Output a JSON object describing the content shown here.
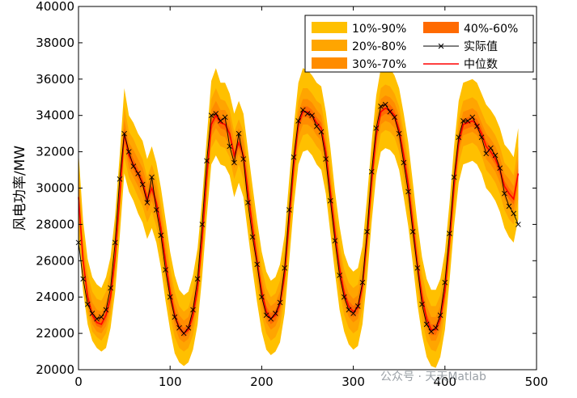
{
  "colors": {
    "band_10_90": "#FFC000",
    "band_20_80": "#FFA500",
    "band_30_70": "#FF8C00",
    "band_40_60": "#FF6A00",
    "actual": "#000000",
    "median": "#FF0000"
  },
  "watermark": "公众号 · 天天Matlab",
  "chart_data": {
    "type": "line",
    "title": "",
    "xlabel": "",
    "ylabel": "风电功率/MW",
    "xlim": [
      0,
      500
    ],
    "ylim": [
      20000,
      40000
    ],
    "x_ticks": [
      "0",
      "100",
      "200",
      "300",
      "400",
      "500"
    ],
    "y_ticks": [
      "20000",
      "22000",
      "24000",
      "26000",
      "28000",
      "30000",
      "32000",
      "34000",
      "36000",
      "38000",
      "40000"
    ],
    "grid": false,
    "legend_position": "top-right",
    "legend": [
      "10%-90%",
      "20%-80%",
      "30%-70%",
      "40%-60%",
      "实际值",
      "中位数"
    ],
    "x": [
      0,
      5,
      10,
      15,
      20,
      25,
      30,
      35,
      40,
      45,
      50,
      55,
      60,
      65,
      70,
      75,
      80,
      85,
      90,
      95,
      100,
      105,
      110,
      115,
      120,
      125,
      130,
      135,
      140,
      145,
      150,
      155,
      160,
      165,
      170,
      175,
      180,
      185,
      190,
      195,
      200,
      205,
      210,
      215,
      220,
      225,
      230,
      235,
      240,
      245,
      250,
      255,
      260,
      265,
      270,
      275,
      280,
      285,
      290,
      295,
      300,
      305,
      310,
      315,
      320,
      325,
      330,
      335,
      340,
      345,
      350,
      355,
      360,
      365,
      370,
      375,
      380,
      385,
      390,
      395,
      400,
      405,
      410,
      415,
      420,
      425,
      430,
      435,
      440,
      445,
      450,
      455,
      460,
      465,
      470,
      475,
      480
    ],
    "series": [
      {
        "name": "实际值",
        "values": [
          27000,
          25000,
          23600,
          23100,
          22800,
          22900,
          23300,
          24500,
          27000,
          30500,
          33000,
          32000,
          31200,
          30800,
          30200,
          29200,
          30600,
          28800,
          27400,
          25500,
          24000,
          22900,
          22300,
          22000,
          22300,
          23300,
          25000,
          28000,
          31500,
          34000,
          34100,
          33700,
          33900,
          32300,
          31400,
          33000,
          31600,
          29200,
          27300,
          25800,
          24000,
          23000,
          22800,
          23100,
          23700,
          25600,
          28800,
          31700,
          33700,
          34300,
          34100,
          34000,
          33400,
          33100,
          31600,
          29300,
          27100,
          25200,
          24000,
          23300,
          23100,
          23500,
          24800,
          27600,
          30900,
          33300,
          34500,
          34600,
          34200,
          33900,
          33000,
          31400,
          29800,
          27600,
          25600,
          23600,
          22500,
          22100,
          22300,
          23000,
          24800,
          27500,
          30600,
          32800,
          33700,
          33700,
          33900,
          33400,
          32800,
          31900,
          32200,
          31800,
          31100,
          29700,
          29000,
          28600,
          28000
        ]
      },
      {
        "name": "中位数",
        "values": [
          29500,
          26000,
          24000,
          23000,
          22600,
          22500,
          23000,
          24000,
          26200,
          29500,
          33000,
          31800,
          31300,
          30800,
          30300,
          29400,
          30000,
          29200,
          27800,
          26000,
          24300,
          23000,
          22300,
          22000,
          22200,
          23000,
          24500,
          27200,
          30600,
          33500,
          34000,
          33600,
          33500,
          33000,
          31800,
          32500,
          31800,
          29800,
          27800,
          26000,
          24300,
          23200,
          22800,
          23000,
          23600,
          25200,
          28200,
          31200,
          33500,
          34200,
          34200,
          34000,
          33600,
          33300,
          32000,
          29800,
          27500,
          25600,
          24200,
          23500,
          23200,
          23400,
          24600,
          27200,
          30300,
          32900,
          34200,
          34400,
          34300,
          34000,
          33200,
          31800,
          30200,
          28000,
          25800,
          24000,
          22800,
          22200,
          22200,
          22800,
          24300,
          27000,
          30100,
          32500,
          33500,
          33600,
          33700,
          33500,
          33000,
          32300,
          32000,
          31600,
          31000,
          30100,
          29700,
          29400,
          30800
        ]
      },
      {
        "name": "10%-90%",
        "values_low": [
          27200,
          24300,
          22500,
          21600,
          21200,
          21000,
          21200,
          22300,
          24300,
          27300,
          30800,
          29800,
          29300,
          28600,
          28100,
          27200,
          27800,
          27000,
          25600,
          23800,
          22200,
          20900,
          20400,
          20200,
          20400,
          21100,
          22500,
          25100,
          28400,
          31300,
          31800,
          31300,
          31200,
          30700,
          29500,
          30300,
          29500,
          27500,
          25500,
          23700,
          22100,
          21100,
          20800,
          21000,
          21500,
          23100,
          26000,
          29000,
          31300,
          32000,
          32100,
          31800,
          31300,
          31000,
          29700,
          27500,
          25300,
          23300,
          22100,
          21400,
          21100,
          21300,
          22500,
          25000,
          28100,
          30700,
          32000,
          32200,
          32100,
          31800,
          31000,
          29500,
          27900,
          25800,
          23600,
          21900,
          20700,
          20200,
          20100,
          20700,
          22200,
          24900,
          27900,
          30300,
          31300,
          31400,
          31500,
          31300,
          30800,
          30000,
          29700,
          29300,
          28700,
          27800,
          27300,
          27000,
          28300
        ],
        "values_high": [
          32000,
          28200,
          26100,
          25100,
          24700,
          24500,
          25100,
          26200,
          28500,
          31800,
          35500,
          34000,
          33600,
          33000,
          32600,
          31600,
          32300,
          31400,
          30000,
          28300,
          26500,
          25200,
          24400,
          24100,
          24300,
          25200,
          26700,
          29400,
          32800,
          35900,
          36600,
          35800,
          35800,
          35200,
          34100,
          34800,
          34100,
          32100,
          30100,
          28200,
          26500,
          25400,
          24900,
          25100,
          25800,
          27400,
          30500,
          33400,
          35800,
          36600,
          36500,
          36200,
          35800,
          35600,
          34200,
          32200,
          29800,
          27900,
          26400,
          25700,
          25400,
          25600,
          26800,
          29500,
          32500,
          35100,
          36600,
          36800,
          36600,
          36200,
          35500,
          34100,
          32500,
          30300,
          28100,
          26200,
          25000,
          24400,
          24400,
          25000,
          26500,
          29200,
          32300,
          34800,
          35800,
          35900,
          36000,
          35800,
          35200,
          34600,
          34300,
          33900,
          33300,
          32400,
          32100,
          31700,
          33300
        ]
      },
      {
        "name": "20%-80%",
        "values_low": [
          28000,
          25000,
          23100,
          22100,
          21800,
          21600,
          22000,
          23000,
          25100,
          28200,
          31700,
          30600,
          30100,
          29500,
          29000,
          28100,
          28700,
          27900,
          26500,
          24700,
          23000,
          21800,
          21200,
          21000,
          21200,
          21900,
          23400,
          26000,
          29300,
          32200,
          32700,
          32300,
          32200,
          31700,
          30500,
          31300,
          30500,
          28500,
          26500,
          24700,
          23000,
          22000,
          21600,
          21800,
          22400,
          24000,
          27000,
          30000,
          32200,
          32900,
          33000,
          32700,
          32300,
          32000,
          30700,
          28500,
          26300,
          24300,
          23000,
          22300,
          22000,
          22200,
          23400,
          26000,
          29100,
          31700,
          33000,
          33200,
          33100,
          32800,
          32000,
          30500,
          28900,
          26800,
          24600,
          22800,
          21600,
          21100,
          21000,
          21600,
          23100,
          25800,
          28900,
          31300,
          32300,
          32400,
          32500,
          32300,
          31800,
          31000,
          30700,
          30300,
          29700,
          28800,
          28300,
          28000,
          29400
        ],
        "values_high": [
          31100,
          27300,
          25300,
          24300,
          23900,
          23800,
          24300,
          25400,
          27600,
          30900,
          34500,
          33100,
          32700,
          32100,
          31600,
          30600,
          31300,
          30500,
          29100,
          27400,
          25600,
          24300,
          23500,
          23200,
          23400,
          24300,
          25800,
          28500,
          31900,
          34900,
          35500,
          34900,
          34800,
          34300,
          33100,
          33800,
          33100,
          31100,
          29100,
          27300,
          25600,
          24500,
          24000,
          24200,
          24900,
          26500,
          29500,
          32400,
          34800,
          35500,
          35500,
          35200,
          34800,
          34600,
          33200,
          31200,
          28800,
          26900,
          25500,
          24800,
          24500,
          24700,
          25900,
          28500,
          31500,
          34100,
          35500,
          35700,
          35600,
          35200,
          34500,
          33100,
          31500,
          29300,
          27100,
          25300,
          24100,
          23500,
          23500,
          24100,
          25600,
          28300,
          31300,
          33800,
          34800,
          34900,
          35000,
          34800,
          34200,
          33600,
          33300,
          32900,
          32300,
          31400,
          31100,
          30700,
          32300
        ]
      },
      {
        "name": "30%-70%",
        "values_low": [
          28700,
          25400,
          23500,
          22500,
          22100,
          22000,
          22400,
          23400,
          25600,
          28800,
          32300,
          31100,
          30600,
          30100,
          29600,
          28700,
          29300,
          28500,
          27100,
          25300,
          23600,
          22400,
          21700,
          21500,
          21700,
          22400,
          23900,
          26600,
          29900,
          32800,
          33300,
          32900,
          32800,
          32300,
          31100,
          31900,
          31100,
          29100,
          27100,
          25300,
          23600,
          22600,
          22200,
          22400,
          23000,
          24600,
          27600,
          30600,
          32800,
          33500,
          33500,
          33300,
          32900,
          32600,
          31300,
          29100,
          26900,
          24900,
          23600,
          22900,
          22600,
          22800,
          24000,
          26600,
          29700,
          32300,
          33500,
          33700,
          33600,
          33300,
          32500,
          31100,
          29500,
          27300,
          25100,
          23400,
          22200,
          21600,
          21600,
          22200,
          23700,
          26400,
          29500,
          31900,
          32900,
          33000,
          33100,
          32900,
          32400,
          31600,
          31300,
          30900,
          30300,
          29400,
          29000,
          28700,
          30100
        ],
        "values_high": [
          30400,
          26700,
          24800,
          23700,
          23300,
          23200,
          23700,
          24700,
          26900,
          30300,
          33800,
          32500,
          32100,
          31600,
          31100,
          30200,
          30800,
          30000,
          28600,
          26800,
          25100,
          23700,
          23000,
          22700,
          22900,
          23700,
          25200,
          27900,
          31300,
          34300,
          34800,
          34300,
          34300,
          33800,
          32600,
          33300,
          32600,
          30600,
          28600,
          26800,
          25100,
          23900,
          23500,
          23700,
          24300,
          25900,
          28900,
          31900,
          34200,
          34900,
          34900,
          34700,
          34300,
          34000,
          32700,
          30600,
          28300,
          26400,
          24900,
          24200,
          23900,
          24100,
          25300,
          27900,
          31000,
          33600,
          34900,
          35100,
          35000,
          34700,
          34000,
          32600,
          31000,
          28800,
          26600,
          24700,
          23500,
          22900,
          22900,
          23500,
          25000,
          27700,
          30800,
          33200,
          34200,
          34300,
          34400,
          34200,
          33600,
          33000,
          32700,
          32300,
          31700,
          30800,
          30500,
          30100,
          31600
        ]
      },
      {
        "name": "40%-60%",
        "values_low": [
          29200,
          25700,
          23800,
          22800,
          22400,
          22300,
          22700,
          23700,
          26000,
          29200,
          32700,
          31500,
          31000,
          30500,
          30000,
          29100,
          29700,
          28900,
          27500,
          25700,
          24000,
          22700,
          22100,
          21800,
          22000,
          22700,
          24200,
          26900,
          30300,
          33200,
          33700,
          33300,
          33200,
          32700,
          31500,
          32200,
          31500,
          29500,
          27500,
          25700,
          24000,
          22900,
          22500,
          22700,
          23300,
          24900,
          27900,
          30900,
          33200,
          33900,
          33900,
          33700,
          33300,
          33000,
          31700,
          29500,
          27200,
          25300,
          23900,
          23200,
          22900,
          23100,
          24300,
          26900,
          30000,
          32600,
          33900,
          34100,
          34000,
          33700,
          32900,
          31500,
          29900,
          27700,
          25500,
          23700,
          22500,
          21900,
          21900,
          22500,
          24000,
          26700,
          29800,
          32200,
          33200,
          33300,
          33400,
          33200,
          32700,
          32000,
          31700,
          31300,
          30700,
          29800,
          29400,
          29100,
          30500
        ],
        "values_high": [
          29800,
          26300,
          24300,
          23300,
          22900,
          22800,
          23300,
          24300,
          26500,
          29800,
          33300,
          32200,
          31600,
          31100,
          30600,
          29700,
          30300,
          29500,
          28100,
          26300,
          24600,
          23300,
          22600,
          22300,
          22500,
          23300,
          24800,
          27500,
          30900,
          33800,
          34300,
          33900,
          33800,
          33300,
          32100,
          32800,
          32100,
          30100,
          28100,
          26300,
          24600,
          23500,
          23100,
          23300,
          23900,
          25500,
          28500,
          31500,
          33800,
          34500,
          34500,
          34300,
          33900,
          33600,
          32300,
          30100,
          27800,
          25900,
          24500,
          23800,
          23500,
          23700,
          24900,
          27500,
          30600,
          33200,
          34500,
          34700,
          34600,
          34300,
          33500,
          32100,
          30500,
          28300,
          26100,
          24300,
          23100,
          22500,
          22500,
          23100,
          24600,
          27300,
          30400,
          32800,
          33800,
          33900,
          34000,
          33800,
          33300,
          32600,
          32300,
          31900,
          31300,
          30400,
          30000,
          29700,
          31100
        ]
      }
    ]
  }
}
